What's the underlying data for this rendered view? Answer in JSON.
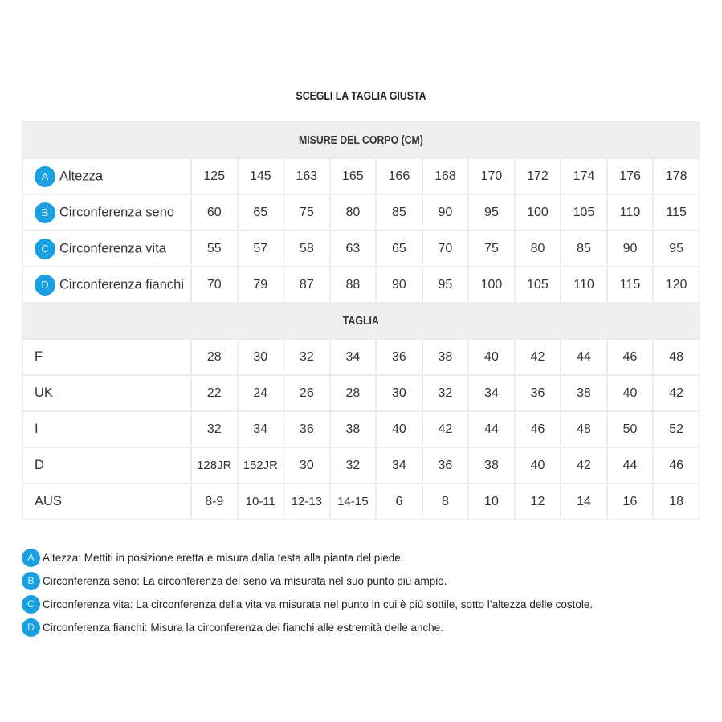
{
  "title": "SCEGLI LA TAGLIA GIUSTA",
  "accent_color": "#1a9fe0",
  "body_section": {
    "header": "MISURE DEL CORPO (CM)",
    "rows": [
      {
        "badge": "A",
        "label": "Altezza",
        "values": [
          "125",
          "145",
          "163",
          "165",
          "166",
          "168",
          "170",
          "172",
          "174",
          "176",
          "178"
        ]
      },
      {
        "badge": "B",
        "label": "Circonferenza seno",
        "values": [
          "60",
          "65",
          "75",
          "80",
          "85",
          "90",
          "95",
          "100",
          "105",
          "110",
          "115"
        ]
      },
      {
        "badge": "C",
        "label": "Circonferenza vita",
        "values": [
          "55",
          "57",
          "58",
          "63",
          "65",
          "70",
          "75",
          "80",
          "85",
          "90",
          "95"
        ]
      },
      {
        "badge": "D",
        "label": "Circonferenza fianchi",
        "values": [
          "70",
          "79",
          "87",
          "88",
          "90",
          "95",
          "100",
          "105",
          "110",
          "115",
          "120"
        ]
      }
    ]
  },
  "size_section": {
    "header": "TAGLIA",
    "rows": [
      {
        "label": "F",
        "values": [
          "28",
          "30",
          "32",
          "34",
          "36",
          "38",
          "40",
          "42",
          "44",
          "46",
          "48"
        ]
      },
      {
        "label": "UK",
        "values": [
          "22",
          "24",
          "26",
          "28",
          "30",
          "32",
          "34",
          "36",
          "38",
          "40",
          "42"
        ]
      },
      {
        "label": "I",
        "values": [
          "32",
          "34",
          "36",
          "38",
          "40",
          "42",
          "44",
          "46",
          "48",
          "50",
          "52"
        ]
      },
      {
        "label": "D",
        "values": [
          "128JR",
          "152JR",
          "30",
          "32",
          "34",
          "36",
          "38",
          "40",
          "42",
          "44",
          "46"
        ]
      },
      {
        "label": "AUS",
        "values": [
          "8-9",
          "10-11",
          "12-13",
          "14-15",
          "6",
          "8",
          "10",
          "12",
          "14",
          "16",
          "18"
        ]
      }
    ]
  },
  "notes": [
    {
      "badge": "A",
      "text": "Altezza: Mettiti in posizione eretta e misura dalla testa alla pianta del piede."
    },
    {
      "badge": "B",
      "text": "Circonferenza seno: La circonferenza del seno va misurata nel suo punto più ampio."
    },
    {
      "badge": "C",
      "text": "Circonferenza vita: La circonferenza della vita va misurata nel punto in cui è più sottile, sotto l’altezza delle costole."
    },
    {
      "badge": "D",
      "text": "Circonferenza fianchi: Misura la circonferenza dei fianchi alle estremità delle anche."
    }
  ]
}
